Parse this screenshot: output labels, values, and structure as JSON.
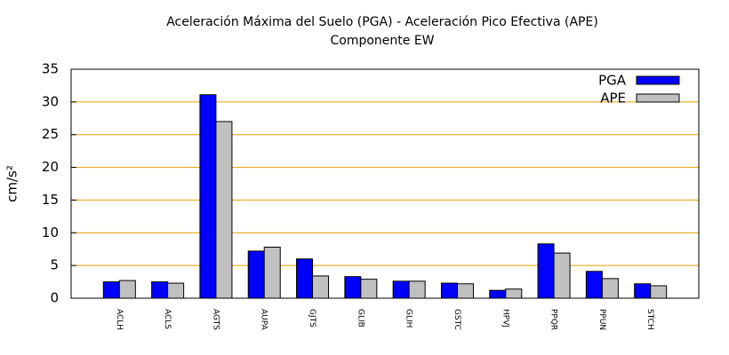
{
  "chart_data": {
    "type": "bar",
    "title": "Aceleración Máxima del Suelo (PGA) -  Aceleración Pico Efectiva (APE)",
    "subtitle": "Componente EW",
    "y_label": "cm/s²",
    "categories": [
      "ACLH",
      "ACLS",
      "AGTS",
      "AUPA",
      "GJTS",
      "GLIB",
      "GLIH",
      "GSTC",
      "HPVJ",
      "PPQR",
      "PPUN",
      "STCH"
    ],
    "series": [
      {
        "name": "PGA",
        "color": "#0000ff",
        "values": [
          2.5,
          2.5,
          31.1,
          7.2,
          6.0,
          3.3,
          2.6,
          2.3,
          1.2,
          8.3,
          4.1,
          2.2
        ]
      },
      {
        "name": "APE",
        "color": "#c0c0c0",
        "values": [
          2.7,
          2.3,
          27.0,
          7.8,
          3.4,
          2.9,
          2.6,
          2.2,
          1.4,
          6.9,
          3.0,
          1.9
        ]
      }
    ],
    "ylim": [
      0,
      35
    ],
    "yticks": [
      0,
      5,
      10,
      15,
      20,
      25,
      30,
      35
    ],
    "grid": true,
    "legend": "top-right"
  }
}
